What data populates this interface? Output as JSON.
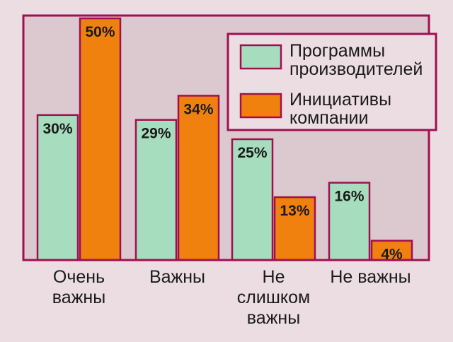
{
  "chart_data": {
    "type": "bar",
    "title": "",
    "xlabel": "",
    "ylabel": "",
    "ylim": [
      0,
      56
    ],
    "grid": false,
    "legend_position": "top-right",
    "colors": {
      "background": "#ecdde3",
      "plot_bg": "#dcc8cf",
      "frame": "#a0104f",
      "series1": "#a6ddbe",
      "series2": "#f0810f",
      "bar_edge": "#a0104f"
    },
    "categories": [
      [
        "Очень",
        "важны"
      ],
      [
        "Важны"
      ],
      [
        "Не",
        "слишком",
        "важны"
      ],
      [
        "Не важны"
      ]
    ],
    "series": [
      {
        "name": [
          "Программы",
          "производителей"
        ],
        "values": [
          30,
          29,
          25,
          16
        ],
        "labels": [
          "30%",
          "29%",
          "25%",
          "16%"
        ]
      },
      {
        "name": [
          "Инициативы",
          "компании"
        ],
        "values": [
          50,
          34,
          13,
          4
        ],
        "labels": [
          "50%",
          "34%",
          "13%",
          "4%"
        ]
      }
    ]
  }
}
